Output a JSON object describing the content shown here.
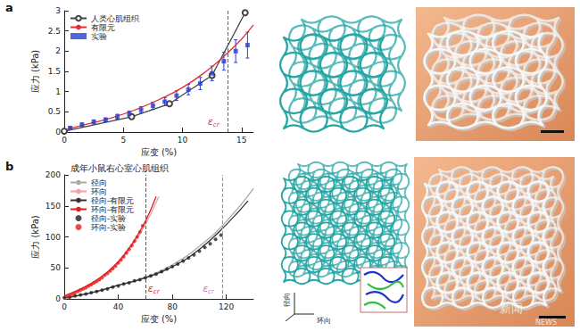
{
  "chart_data": [
    {
      "type": "line",
      "x_label": "应变 (%)",
      "y_label": "应力 (kPa)",
      "xlim": [
        0,
        16
      ],
      "ylim": [
        0,
        3
      ],
      "xticks": [
        0,
        5,
        10,
        15
      ],
      "yticks": [
        0,
        0.5,
        1,
        1.5,
        2,
        2.5,
        3
      ],
      "grid": false,
      "legend": "upper left",
      "series": [
        {
          "name": "人类心肌组织",
          "type": "line",
          "color": "#444444",
          "marker": "circle-open",
          "line_style": "solid",
          "x": [
            0,
            5.7,
            8.9,
            12.5,
            15.3
          ],
          "values": [
            0.02,
            0.38,
            0.7,
            1.4,
            2.95
          ]
        },
        {
          "name": "有限元",
          "type": "line",
          "color": "#e03030",
          "line_style": "solid",
          "x": [
            0,
            2,
            4,
            6,
            8,
            10,
            12,
            13.8,
            15,
            16
          ],
          "values": [
            0.05,
            0.2,
            0.35,
            0.55,
            0.8,
            1.1,
            1.5,
            1.95,
            2.3,
            2.65
          ]
        },
        {
          "name": "实验",
          "type": "scatter",
          "color": "#2a3fd0",
          "marker": "square",
          "x": [
            0.5,
            1.5,
            2.5,
            3.5,
            4.5,
            5.5,
            6.5,
            7.5,
            8.5,
            9.5,
            10.5,
            11.5,
            12.5,
            13.5,
            14.5,
            15.5
          ],
          "values": [
            0.1,
            0.18,
            0.25,
            0.3,
            0.38,
            0.45,
            0.55,
            0.65,
            0.75,
            0.9,
            1.05,
            1.2,
            1.45,
            1.75,
            2.0,
            2.15
          ],
          "errors": [
            0.03,
            0.04,
            0.05,
            0.05,
            0.06,
            0.07,
            0.08,
            0.09,
            0.1,
            0.12,
            0.13,
            0.15,
            0.18,
            0.22,
            0.28,
            0.32
          ]
        }
      ],
      "annotations": [
        {
          "text": "ε",
          "subscript": "cr",
          "x": 13.8,
          "color": "#c0307a",
          "line_style": "dashed"
        }
      ]
    },
    {
      "type": "line",
      "title": "成年小鼠右心室心肌组织",
      "x_label": "应变 (%)",
      "y_label": "应力 (kPa)",
      "xlim": [
        0,
        140
      ],
      "ylim": [
        0,
        200
      ],
      "xticks": [
        0,
        40,
        80,
        120
      ],
      "yticks": [
        0,
        50,
        100,
        150,
        200
      ],
      "grid": false,
      "legend": "upper left",
      "series": [
        {
          "name": "径向",
          "type": "line",
          "color": "#aaaaaa",
          "line_style": "solid",
          "x": [
            0,
            20,
            40,
            60,
            80,
            100,
            120,
            140
          ],
          "values": [
            0,
            10,
            22,
            35,
            55,
            85,
            125,
            178
          ]
        },
        {
          "name": "环向",
          "type": "line",
          "color": "#f0a0a0",
          "line_style": "solid",
          "x": [
            0,
            10,
            20,
            30,
            40,
            50,
            60,
            70
          ],
          "values": [
            0,
            12,
            22,
            38,
            58,
            85,
            120,
            165
          ]
        },
        {
          "name": "径向-有限元",
          "type": "line",
          "color": "#333333",
          "line_style": "solid",
          "x": [
            0,
            20,
            40,
            60,
            80,
            100,
            120,
            136
          ],
          "values": [
            2,
            10,
            22,
            34,
            52,
            80,
            120,
            158
          ]
        },
        {
          "name": "环向-有限元",
          "type": "line",
          "color": "#e02020",
          "line_style": "solid",
          "x": [
            0,
            10,
            20,
            30,
            40,
            50,
            60,
            68
          ],
          "values": [
            5,
            14,
            25,
            40,
            60,
            88,
            125,
            165
          ]
        },
        {
          "name": "径向-实验",
          "type": "scatter",
          "color": "#222222",
          "marker": "circle",
          "x": [
            0,
            4,
            8,
            12,
            16,
            20,
            24,
            28,
            32,
            36,
            40,
            44,
            48,
            52,
            56,
            60,
            64,
            68,
            72,
            76,
            80,
            84,
            88,
            92,
            96,
            100,
            104,
            108,
            112,
            116
          ],
          "values": [
            2,
            3,
            5,
            6.5,
            8,
            10,
            12,
            14,
            16,
            19,
            21,
            24,
            26,
            29,
            31,
            34,
            37,
            40,
            44,
            48,
            52,
            56,
            61,
            66,
            71,
            77,
            83,
            89,
            96,
            103
          ]
        },
        {
          "name": "环向-实验",
          "type": "scatter",
          "color": "#e02020",
          "marker": "circle",
          "x": [
            2,
            4,
            6,
            8,
            10,
            12,
            14,
            16,
            18,
            20,
            22,
            24,
            26,
            28,
            30,
            32,
            34,
            36,
            38,
            40,
            42,
            44,
            46,
            48,
            50,
            52,
            54,
            56,
            58
          ],
          "values": [
            4,
            6,
            8,
            10,
            12,
            14,
            16,
            18,
            21,
            23,
            26,
            28,
            31,
            34,
            38,
            41,
            45,
            49,
            53,
            58,
            63,
            68,
            74,
            80,
            86,
            93,
            100,
            108,
            118
          ]
        }
      ],
      "annotations": [
        {
          "text": "ε",
          "subscript": "cr",
          "x": 60,
          "color": "#e02020",
          "line_style": "dashed"
        },
        {
          "text": "ε",
          "subscript": "cr",
          "x": 117,
          "color": "#d070c0",
          "line_style": "dashed"
        }
      ]
    }
  ],
  "figure": {
    "panel_labels": [
      "a",
      "b"
    ],
    "triad_labels": [
      "径向",
      "环向"
    ],
    "watermark": [
      "新闻",
      "NEWS"
    ]
  }
}
